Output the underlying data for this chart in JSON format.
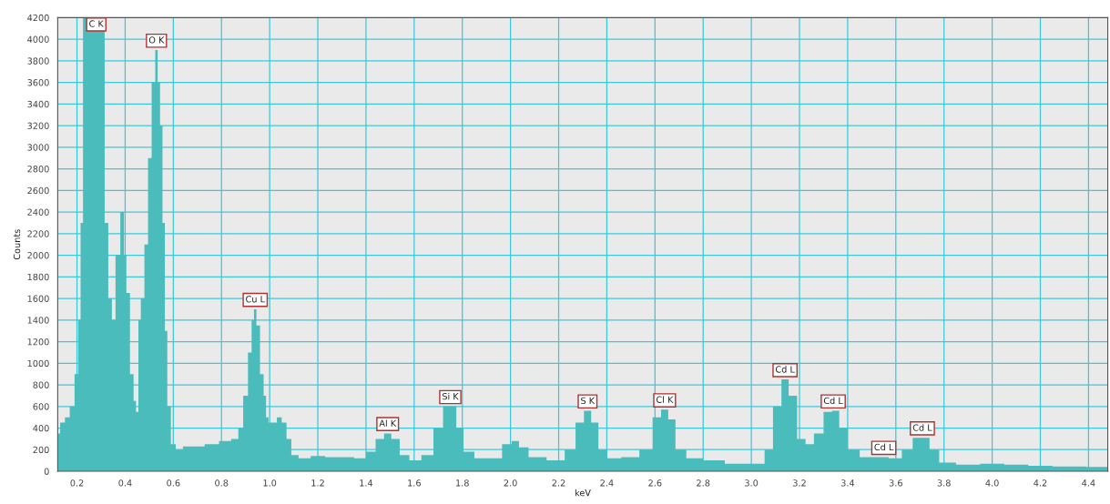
{
  "chart_data": {
    "type": "area",
    "xlabel": "keV",
    "ylabel": "Counts",
    "x": [
      0.12,
      0.14,
      0.16,
      0.18,
      0.2,
      0.21,
      0.22,
      0.23,
      0.31,
      0.32,
      0.34,
      0.35,
      0.37,
      0.39,
      0.4,
      0.41,
      0.43,
      0.44,
      0.45,
      0.46,
      0.47,
      0.49,
      0.5,
      0.52,
      0.53,
      0.54,
      0.55,
      0.56,
      0.57,
      0.58,
      0.6,
      0.62,
      0.66,
      0.7,
      0.76,
      0.82,
      0.86,
      0.88,
      0.9,
      0.92,
      0.93,
      0.94,
      0.95,
      0.97,
      0.98,
      0.99,
      1.0,
      1.02,
      1.04,
      1.06,
      1.08,
      1.1,
      1.14,
      1.2,
      1.26,
      1.32,
      1.38,
      1.42,
      1.46,
      1.49,
      1.52,
      1.56,
      1.6,
      1.66,
      1.7,
      1.74,
      1.76,
      1.79,
      1.82,
      1.88,
      1.94,
      1.99,
      2.02,
      2.05,
      2.1,
      2.2,
      2.25,
      2.29,
      2.32,
      2.35,
      2.38,
      2.42,
      2.5,
      2.57,
      2.61,
      2.64,
      2.67,
      2.7,
      2.76,
      2.84,
      2.94,
      3.04,
      3.07,
      3.11,
      3.14,
      3.17,
      3.21,
      3.24,
      3.28,
      3.32,
      3.35,
      3.38,
      3.42,
      3.48,
      3.54,
      3.6,
      3.65,
      3.69,
      3.72,
      3.76,
      3.8,
      3.9,
      4.0,
      4.1,
      4.2,
      4.3,
      4.48
    ],
    "series": [
      {
        "color": "#4bbcbc",
        "values": [
          350,
          450,
          500,
          600,
          900,
          1400,
          2300,
          4200,
          4200,
          2300,
          1600,
          1400,
          2000,
          2400,
          2000,
          1650,
          900,
          650,
          550,
          1400,
          1600,
          2100,
          2900,
          3600,
          3900,
          3600,
          3200,
          2300,
          1300,
          600,
          250,
          200,
          230,
          230,
          250,
          280,
          300,
          400,
          700,
          1100,
          1400,
          1500,
          1350,
          900,
          700,
          500,
          450,
          450,
          500,
          450,
          300,
          150,
          120,
          140,
          130,
          130,
          120,
          180,
          300,
          350,
          300,
          150,
          100,
          150,
          400,
          600,
          600,
          400,
          180,
          120,
          120,
          250,
          280,
          220,
          130,
          100,
          200,
          450,
          560,
          450,
          200,
          120,
          130,
          200,
          500,
          570,
          480,
          200,
          120,
          100,
          70,
          70,
          200,
          600,
          850,
          700,
          300,
          250,
          350,
          550,
          560,
          400,
          200,
          130,
          130,
          120,
          200,
          310,
          310,
          200,
          80,
          60,
          70,
          60,
          50,
          45,
          40
        ]
      }
    ],
    "xlim": [
      0.12,
      4.48
    ],
    "ylim": [
      0,
      4200
    ],
    "xticks": [
      {
        "value": 0.2,
        "label": "0.2"
      },
      {
        "value": 0.4,
        "label": "0.4"
      },
      {
        "value": 0.6,
        "label": "0.6"
      },
      {
        "value": 0.8,
        "label": "0.8"
      },
      {
        "value": 1.0,
        "label": "1.0"
      },
      {
        "value": 1.2,
        "label": "1.2"
      },
      {
        "value": 1.4,
        "label": "1.4"
      },
      {
        "value": 1.6,
        "label": "1.6"
      },
      {
        "value": 1.8,
        "label": "1.8"
      },
      {
        "value": 2.0,
        "label": "2.0"
      },
      {
        "value": 2.2,
        "label": "2.2"
      },
      {
        "value": 2.4,
        "label": "2.4"
      },
      {
        "value": 2.6,
        "label": "2.6"
      },
      {
        "value": 2.8,
        "label": "2.8"
      },
      {
        "value": 3.0,
        "label": "3.0"
      },
      {
        "value": 3.2,
        "label": "3.2"
      },
      {
        "value": 3.4,
        "label": "3.4"
      },
      {
        "value": 3.6,
        "label": "3.6"
      },
      {
        "value": 3.8,
        "label": "3.8"
      },
      {
        "value": 4.0,
        "label": "4.0"
      },
      {
        "value": 4.2,
        "label": "4.2"
      },
      {
        "value": 4.4,
        "label": "4.4"
      }
    ],
    "yticks": [
      0,
      200,
      400,
      600,
      800,
      1000,
      1200,
      1400,
      1600,
      1800,
      2000,
      2200,
      2400,
      2600,
      2800,
      3000,
      3200,
      3400,
      3600,
      3800,
      4000,
      4200
    ],
    "grid": true,
    "annotations": [
      {
        "text": "C K",
        "x": 0.28,
        "y": 4200
      },
      {
        "text": "O K",
        "x": 0.53,
        "y": 3900
      },
      {
        "text": "Cu L",
        "x": 0.94,
        "y": 1500
      },
      {
        "text": "Al K",
        "x": 1.49,
        "y": 350
      },
      {
        "text": "Si K",
        "x": 1.75,
        "y": 600
      },
      {
        "text": "S K",
        "x": 2.32,
        "y": 560
      },
      {
        "text": "Cl K",
        "x": 2.64,
        "y": 570
      },
      {
        "text": "Cd L",
        "x": 3.14,
        "y": 850
      },
      {
        "text": "Cd L",
        "x": 3.34,
        "y": 560
      },
      {
        "text": "Cd L",
        "x": 3.55,
        "y": 130
      },
      {
        "text": "Cd L",
        "x": 3.71,
        "y": 310
      }
    ]
  }
}
